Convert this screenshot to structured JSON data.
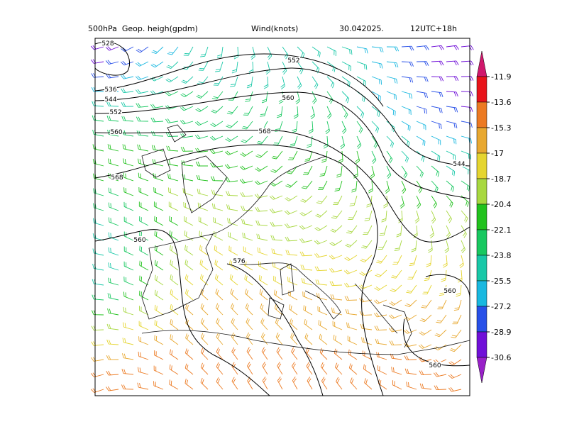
{
  "title": {
    "field": "500hPa  Geop. heigh(gpdm)",
    "wind": "Wind(knots)",
    "date": "30.042025.",
    "run": "12UTC+18h"
  },
  "colorbar": {
    "levels": [
      -11.9,
      -13.6,
      -15.3,
      -17,
      -18.7,
      -20.4,
      -22.1,
      -23.8,
      -25.5,
      -27.2,
      -28.9,
      -30.6
    ],
    "colors": [
      "#d0186c",
      "#e8141a",
      "#ec7a22",
      "#e8a830",
      "#e5d530",
      "#a8d840",
      "#22c21e",
      "#18c860",
      "#19c8a8",
      "#19b8e0",
      "#2850e8",
      "#7010d8",
      "#9820c8"
    ]
  },
  "contour_labels": [
    "528",
    "536",
    "544",
    "552",
    "560",
    "552",
    "560",
    "568",
    "568",
    "560",
    "576",
    "560",
    "560",
    "544"
  ]
}
